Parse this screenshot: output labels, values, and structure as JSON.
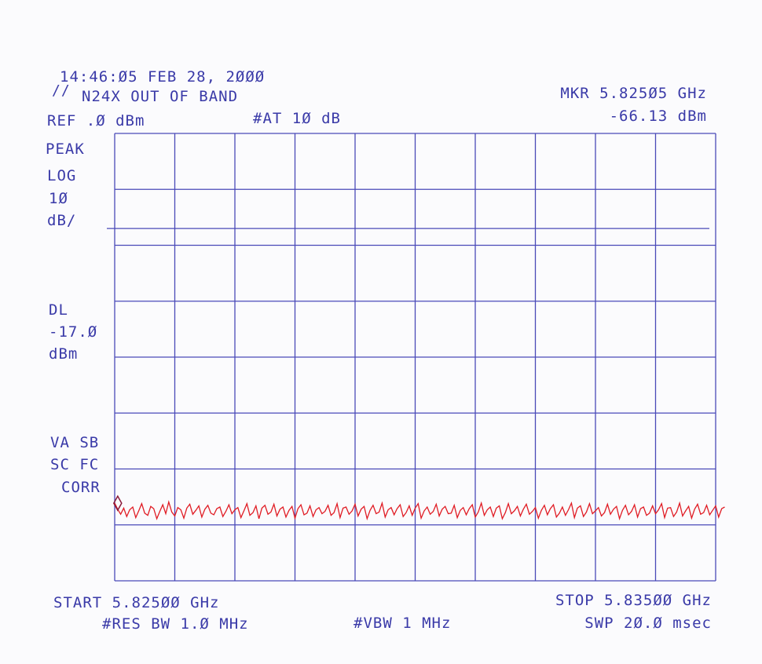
{
  "header": {
    "timestamp": "14:46:Ø5 FEB 28, 2ØØØ",
    "title_marker": "//",
    "title": "N24X OUT OF BAND",
    "ref_level": "REF .Ø dBm",
    "attenuation": "#AT 1Ø dB",
    "marker_freq": "MKR 5.825Ø5 GHz",
    "marker_level": "-66.13 dBm"
  },
  "left_panel": {
    "detector": "PEAK",
    "scale_type": "LOG",
    "scale_value": "1Ø",
    "scale_unit": "dB/",
    "dl_label": "DL",
    "dl_value": "-17.Ø",
    "dl_unit": "dBm",
    "status_line1": "VA SB",
    "status_line2": "SC FC",
    "status_line3": "CORR"
  },
  "footer": {
    "start": "START 5.825ØØ GHz",
    "stop": "STOP 5.835ØØ GHz",
    "res_bw": "#RES BW 1.Ø MHz",
    "vbw": "#VBW 1 MHz",
    "sweep": "SWP 2Ø.Ø msec"
  },
  "colors": {
    "grid": "#4a4ab8",
    "trace": "#e01c24",
    "text": "#3a3aa8"
  },
  "chart_data": {
    "type": "line",
    "x_start_ghz": 5.825,
    "x_stop_ghz": 5.835,
    "x_divisions": 10,
    "y_ref_dbm": 0,
    "y_scale_db_per_div": 10,
    "y_divisions": 8,
    "ylim": [
      -80,
      0
    ],
    "display_line_dbm": -17.0,
    "marker": {
      "x_ghz": 5.82505,
      "y_dbm": -66.13
    },
    "series": [
      {
        "x_start": 5.825,
        "x_step": 5e-05,
        "values": [
          -66.1,
          -67.2,
          -68.1,
          -67.0,
          -68.5,
          -67.3,
          -66.8,
          -68.7,
          -67.5,
          -66.2,
          -67.9,
          -68.3,
          -66.7,
          -67.1,
          -68.9,
          -67.6,
          -66.4,
          -68.0,
          -65.9,
          -67.7,
          -68.4,
          -66.9,
          -67.3,
          -68.8,
          -67.0,
          -66.3,
          -68.1,
          -67.4,
          -66.6,
          -68.6,
          -67.2,
          -66.5,
          -67.9,
          -68.2,
          -67.1,
          -66.8,
          -68.5,
          -67.6,
          -66.4,
          -68.0,
          -67.3,
          -66.9,
          -68.7,
          -67.5,
          -66.2,
          -68.3,
          -67.8,
          -66.6,
          -68.9,
          -67.0,
          -66.5,
          -68.1,
          -67.7,
          -66.3,
          -68.4,
          -67.2,
          -66.8,
          -68.6,
          -67.4,
          -66.7,
          -68.8,
          -67.1,
          -66.4,
          -68.2,
          -67.9,
          -66.6,
          -68.5,
          -67.3,
          -66.9,
          -68.0,
          -67.6,
          -66.5,
          -68.3,
          -67.8,
          -66.2,
          -68.7,
          -67.0,
          -66.8,
          -68.1,
          -67.5,
          -66.3,
          -68.4,
          -67.2,
          -66.7,
          -68.9,
          -67.4,
          -66.5,
          -68.0,
          -67.7,
          -66.1,
          -68.6,
          -67.3,
          -66.9,
          -68.2,
          -67.1,
          -66.4,
          -68.5,
          -67.8,
          -66.6,
          -68.3,
          -67.0,
          -66.2,
          -68.8,
          -67.5,
          -66.8,
          -68.1,
          -67.6,
          -66.3,
          -68.4,
          -67.2,
          -66.7,
          -68.0,
          -67.9,
          -66.5,
          -68.7,
          -67.4,
          -66.9,
          -68.2,
          -67.1,
          -66.4,
          -68.6,
          -67.7,
          -66.1,
          -68.3,
          -67.3,
          -66.8,
          -68.5,
          -67.0,
          -66.6,
          -68.9,
          -67.8,
          -66.2,
          -68.0,
          -67.5,
          -66.7,
          -68.4,
          -67.2,
          -66.3,
          -68.1,
          -67.6,
          -66.9,
          -68.8,
          -67.4,
          -66.5,
          -68.2,
          -67.1,
          -66.4,
          -68.6,
          -67.9,
          -66.8,
          -68.3,
          -67.3,
          -66.1,
          -68.7,
          -67.0,
          -66.6,
          -68.5,
          -67.7,
          -66.2,
          -68.0,
          -67.5,
          -66.9,
          -68.4,
          -67.8,
          -66.3,
          -68.1,
          -67.2,
          -66.7,
          -68.9,
          -67.4,
          -66.5,
          -68.2,
          -67.6,
          -66.4,
          -68.6,
          -67.1,
          -66.8,
          -68.3,
          -67.9,
          -66.6,
          -68.0,
          -67.3,
          -66.2,
          -68.7,
          -67.0,
          -66.9,
          -68.5,
          -67.7,
          -66.1,
          -68.4,
          -67.5,
          -66.7,
          -68.8,
          -67.2,
          -66.3,
          -68.1,
          -67.8,
          -66.5,
          -68.2,
          -67.4,
          -66.6,
          -68.6,
          -67.1,
          -66.8
        ],
        "note": ""
      }
    ]
  }
}
